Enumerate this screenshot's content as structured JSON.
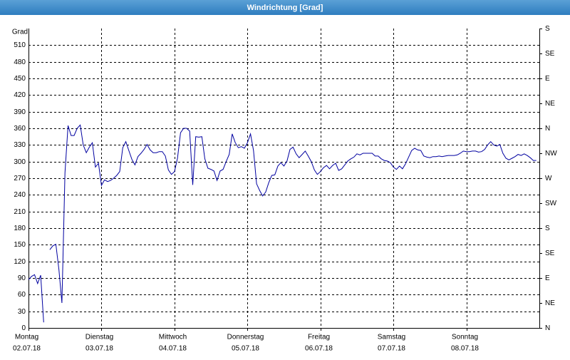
{
  "chart_data": {
    "type": "line",
    "title": "Windrichtung [Grad]",
    "ylabel": "Grad",
    "color": "#0000a0",
    "grid": true,
    "xlim": [
      0,
      168
    ],
    "xticks": [
      {
        "value": 0,
        "label": [
          "Montag",
          "02.07.18"
        ]
      },
      {
        "value": 24,
        "label": [
          "Dienstag",
          "03.07.18"
        ]
      },
      {
        "value": 48,
        "label": [
          "Mittwoch",
          "04.07.18"
        ]
      },
      {
        "value": 72,
        "label": [
          "Donnerstag",
          "05.07.18"
        ]
      },
      {
        "value": 96,
        "label": [
          "Freitag",
          "06.07.18"
        ]
      },
      {
        "value": 120,
        "label": [
          "Samstag",
          "07.07.18"
        ]
      },
      {
        "value": 144,
        "label": [
          "Sonntag",
          "08.07.18"
        ]
      }
    ],
    "ylim": [
      0,
      540
    ],
    "yticks": [
      0,
      30,
      60,
      90,
      120,
      150,
      180,
      210,
      240,
      270,
      300,
      330,
      360,
      390,
      420,
      450,
      480,
      510
    ],
    "y2lim": [
      0,
      540
    ],
    "y2ticks": [
      {
        "value": 0,
        "label": "N"
      },
      {
        "value": 45,
        "label": "NE"
      },
      {
        "value": 90,
        "label": "E"
      },
      {
        "value": 135,
        "label": "SE"
      },
      {
        "value": 180,
        "label": "S"
      },
      {
        "value": 225,
        "label": "SW"
      },
      {
        "value": 270,
        "label": "W"
      },
      {
        "value": 315,
        "label": "NW"
      },
      {
        "value": 360,
        "label": "N"
      },
      {
        "value": 405,
        "label": "NE"
      },
      {
        "value": 450,
        "label": "E"
      },
      {
        "value": 495,
        "label": "SE"
      },
      {
        "value": 540,
        "label": "S"
      }
    ],
    "x": [
      0,
      1,
      2,
      3,
      4,
      5,
      6,
      7,
      8,
      9,
      10,
      11,
      12,
      13,
      14,
      15,
      16,
      17,
      18,
      19,
      20,
      21,
      22,
      23,
      24,
      25,
      26,
      27,
      28,
      29,
      30,
      31,
      32,
      33,
      34,
      35,
      36,
      37,
      38,
      39,
      40,
      41,
      42,
      43,
      44,
      45,
      46,
      47,
      48,
      49,
      50,
      51,
      52,
      53,
      54,
      55,
      56,
      57,
      58,
      59,
      60,
      61,
      62,
      63,
      64,
      65,
      66,
      67,
      68,
      69,
      70,
      71,
      72,
      73,
      74,
      75,
      76,
      77,
      78,
      79,
      80,
      81,
      82,
      83,
      84,
      85,
      86,
      87,
      88,
      89,
      90,
      91,
      92,
      93,
      94,
      95,
      96,
      97,
      98,
      99,
      100,
      101,
      102,
      103,
      104,
      105,
      106,
      107,
      108,
      109,
      110,
      111,
      112,
      113,
      114,
      115,
      116,
      117,
      118,
      119,
      120,
      121,
      122,
      123,
      124,
      125,
      126,
      127,
      128,
      129,
      130,
      131,
      132,
      133,
      134,
      135,
      136,
      137,
      138,
      139,
      140,
      141,
      142,
      143,
      144,
      145,
      146,
      147,
      148,
      149,
      150,
      151,
      152,
      153,
      154,
      155,
      156,
      157,
      158,
      159,
      160,
      161,
      162,
      163,
      164,
      165,
      166,
      167
    ],
    "values": [
      87,
      93,
      96,
      80,
      95,
      10,
      null,
      141,
      148,
      151,
      105,
      45,
      280,
      365,
      347,
      347,
      360,
      366,
      330,
      316,
      326,
      334,
      290,
      297,
      257,
      267,
      264,
      266,
      270,
      275,
      282,
      325,
      336,
      320,
      304,
      294,
      309,
      315,
      322,
      331,
      321,
      316,
      316,
      318,
      318,
      310,
      285,
      277,
      282,
      306,
      352,
      360,
      360,
      355,
      258,
      345,
      344,
      345,
      305,
      288,
      286,
      283,
      266,
      283,
      286,
      300,
      313,
      350,
      334,
      325,
      327,
      324,
      334,
      350,
      320,
      260,
      248,
      238,
      245,
      262,
      275,
      276,
      292,
      298,
      292,
      301,
      322,
      326,
      314,
      307,
      313,
      319,
      310,
      300,
      285,
      277,
      282,
      289,
      293,
      287,
      293,
      297,
      284,
      287,
      294,
      301,
      305,
      308,
      314,
      312,
      315,
      315,
      315,
      315,
      310,
      310,
      305,
      302,
      301,
      298,
      290,
      286,
      292,
      287,
      296,
      308,
      320,
      324,
      321,
      320,
      310,
      308,
      307,
      309,
      309,
      310,
      309,
      310,
      311,
      311,
      311,
      312,
      315,
      319,
      318,
      318,
      319,
      319,
      317,
      318,
      322,
      330,
      336,
      330,
      328,
      331,
      315,
      306,
      303,
      306,
      309,
      313,
      311,
      314,
      311,
      307,
      302,
      302
    ]
  }
}
